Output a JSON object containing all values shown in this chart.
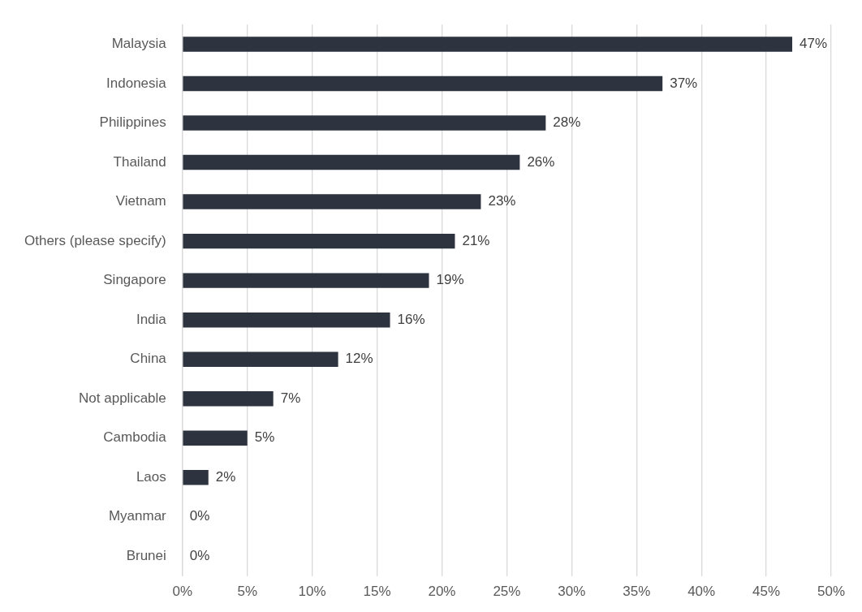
{
  "chart_data": {
    "type": "bar",
    "orientation": "horizontal",
    "categories": [
      "Malaysia",
      "Indonesia",
      "Philippines",
      "Thailand",
      "Vietnam",
      "Others (please specify)",
      "Singapore",
      "India",
      "China",
      "Not applicable",
      "Cambodia",
      "Laos",
      "Myanmar",
      "Brunei"
    ],
    "values": [
      47,
      37,
      28,
      26,
      23,
      21,
      19,
      16,
      12,
      7,
      5,
      2,
      0,
      0
    ],
    "value_labels": [
      "47%",
      "37%",
      "28%",
      "26%",
      "23%",
      "21%",
      "19%",
      "16%",
      "12%",
      "7%",
      "5%",
      "2%",
      "0%",
      "0%"
    ],
    "color": "#2d333f",
    "xlim": [
      0,
      50
    ],
    "xticks": [
      {
        "value": 0,
        "label": "0%"
      },
      {
        "value": 5,
        "label": "5%"
      },
      {
        "value": 10,
        "label": "10%"
      },
      {
        "value": 15,
        "label": "15%"
      },
      {
        "value": 20,
        "label": "20%"
      },
      {
        "value": 25,
        "label": "25%"
      },
      {
        "value": 30,
        "label": "30%"
      },
      {
        "value": 35,
        "label": "35%"
      },
      {
        "value": 40,
        "label": "40%"
      },
      {
        "value": 45,
        "label": "45%"
      },
      {
        "value": 50,
        "label": "50%"
      }
    ],
    "grid": "x",
    "legend": false
  }
}
